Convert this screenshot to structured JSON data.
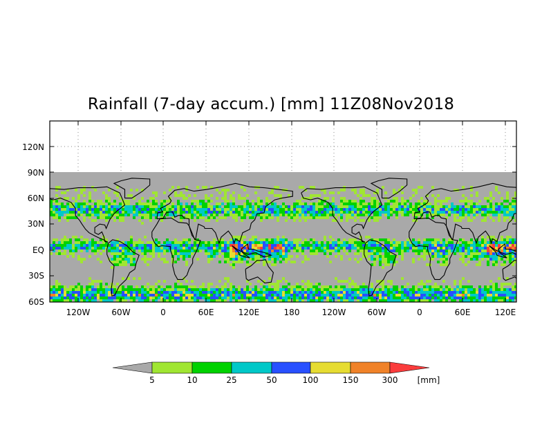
{
  "title": "Rainfall (7-day accum.) [mm] 11Z08Nov2018",
  "y_ticks": [
    "120N",
    "90N",
    "60N",
    "30N",
    "EQ",
    "30S",
    "60S"
  ],
  "x_ticks": [
    "120W",
    "60W",
    "0",
    "60E",
    "120E",
    "180",
    "120W",
    "60W",
    "0",
    "60E",
    "120E"
  ],
  "legend": {
    "bins": [
      {
        "color": "#a9a9a9"
      },
      {
        "color": "#a0e632"
      },
      {
        "color": "#00d200"
      },
      {
        "color": "#00c8c8"
      },
      {
        "color": "#2850ff"
      },
      {
        "color": "#e6dc32"
      },
      {
        "color": "#f08228"
      },
      {
        "color": "#fa3c3c"
      }
    ],
    "labels": [
      "5",
      "10",
      "25",
      "50",
      "100",
      "150",
      "300"
    ],
    "unit": "[mm]"
  },
  "colors": {
    "no_rain": "#a9a9a9",
    "frame": "#000000",
    "grid": "#888888",
    "coast": "#000000"
  }
}
